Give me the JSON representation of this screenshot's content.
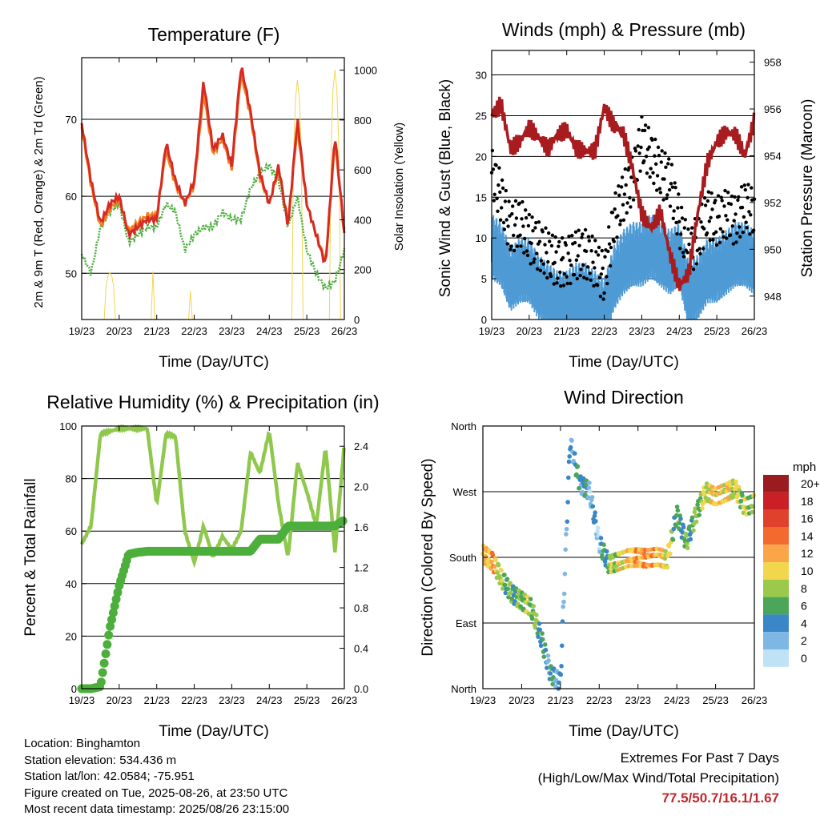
{
  "xticks": [
    "19/23",
    "20/23",
    "21/23",
    "22/23",
    "23/23",
    "24/23",
    "25/23",
    "26/23"
  ],
  "colors": {
    "red": "#d62a22",
    "orange": "#f07e24",
    "green": "#4caf3c",
    "yellow": "#f2d64e",
    "blue": "#4d9ad5",
    "black": "#000000",
    "maroon": "#a81c1f",
    "rh": "#8fc84c",
    "precip": "#4caf3c"
  },
  "panels": {
    "temperature": {
      "title": "Temperature (F)",
      "xlabel": "Time (Day/UTC)",
      "ylabel": "2m & 9m T (Red, Orange) & 2m Td (Green)",
      "ylabel2": "Solar Insolation (Yellow)",
      "yticks": [
        "50",
        "60",
        "70"
      ],
      "yticks2": [
        "0",
        "200",
        "400",
        "600",
        "800",
        "1000"
      ]
    },
    "winds": {
      "title": "Winds (mph) & Pressure (mb)",
      "xlabel": "Time (Day/UTC)",
      "ylabel": "Sonic Wind & Gust (Blue, Black)",
      "ylabel2": "Station Pressure (Maroon)",
      "yticks": [
        "0",
        "5",
        "10",
        "15",
        "20",
        "25",
        "30"
      ],
      "yticks2": [
        "948",
        "950",
        "952",
        "954",
        "956",
        "958"
      ]
    },
    "humidity": {
      "title": "Relative Humidity (%) & Precipitation (in)",
      "xlabel": "Time (Day/UTC)",
      "ylabel": "Percent & Total Rainfall",
      "yticks": [
        "0",
        "20",
        "40",
        "60",
        "80",
        "100"
      ],
      "yticks2": [
        "0.0",
        "0.4",
        "0.8",
        "1.2",
        "1.6",
        "2.0",
        "2.4"
      ]
    },
    "direction": {
      "title": "Wind Direction",
      "xlabel": "Time (Day/UTC)",
      "ylabel": "Direction (Colored By Speed)",
      "yticks": [
        "North",
        "East",
        "South",
        "West",
        "North"
      ],
      "legend_title": "mph",
      "legend_labels": [
        "20+",
        "18",
        "16",
        "14",
        "12",
        "10",
        "8",
        "6",
        "4",
        "2",
        "0"
      ],
      "legend_colors": [
        "#9b1c1f",
        "#c91f25",
        "#e0412d",
        "#f26a2e",
        "#f9a548",
        "#f2d64e",
        "#9bc94c",
        "#4ba65a",
        "#3a86c6",
        "#7fb7e4",
        "#bfe2f6"
      ]
    }
  },
  "info": {
    "location": "Location: Binghamton",
    "elevation": "Station elevation: 534.436 m",
    "latlon": "Station lat/lon: 42.0584; -75.951",
    "created": "Figure created on Tue, 2025-08-26, at 23:50 UTC",
    "recent": "Most recent data timestamp: 2025/08/26 23:15:00"
  },
  "extremes": {
    "title": "Extremes For Past 7 Days",
    "subtitle": "(High/Low/Max Wind/Total Precipitation)",
    "values": "77.5/50.7/16.1/1.67"
  },
  "chart_data": [
    {
      "type": "line",
      "title": "Temperature (F)",
      "xlabel": "Time (Day/UTC)",
      "ylabel": "2m & 9m T (Red, Orange) & 2m Td (Green)",
      "y2label": "Solar Insolation (Yellow)",
      "x": [
        0,
        0.25,
        0.5,
        0.75,
        1,
        1.25,
        1.5,
        1.75,
        2,
        2.25,
        2.5,
        2.75,
        3,
        3.25,
        3.5,
        3.75,
        4,
        4.25,
        4.5,
        4.75,
        5,
        5.25,
        5.5,
        5.75,
        6,
        6.25,
        6.5,
        6.75,
        7
      ],
      "ylim": [
        44,
        78
      ],
      "y2lim": [
        0,
        1050
      ],
      "series": [
        {
          "name": "2m T",
          "values": [
            69.5,
            62,
            56.5,
            59,
            60,
            55,
            56,
            57,
            57,
            67,
            62,
            59,
            62,
            75,
            66,
            68,
            64,
            77,
            71,
            63,
            59,
            64,
            56,
            70,
            59,
            55,
            51,
            68,
            55
          ]
        },
        {
          "name": "9m T",
          "values": [
            69,
            61.5,
            56,
            58.5,
            59.5,
            55.5,
            56.5,
            57.5,
            57.5,
            66,
            61.5,
            59,
            61.5,
            73.5,
            65.5,
            67.5,
            63.5,
            76,
            70.5,
            62.5,
            59,
            63.5,
            56.5,
            69,
            59,
            55,
            51.5,
            67,
            55.5
          ]
        },
        {
          "name": "2m Td",
          "values": [
            52.5,
            50,
            56,
            58,
            59,
            54,
            55,
            56,
            56,
            59,
            58,
            53,
            55,
            56,
            56,
            58,
            57,
            57,
            61,
            63,
            64,
            62,
            56,
            60,
            53,
            50,
            48,
            49,
            53
          ]
        },
        {
          "name": "Solar Insolation",
          "values": [
            0,
            0,
            0,
            190,
            0,
            0,
            0,
            0,
            500,
            0,
            0,
            0,
            300,
            820,
            0,
            0,
            0,
            870,
            0,
            0,
            0,
            860,
            0,
            960,
            0,
            0,
            0,
            1000,
            0
          ]
        }
      ]
    },
    {
      "type": "line",
      "title": "Winds (mph) & Pressure (mb)",
      "xlabel": "Time (Day/UTC)",
      "ylabel": "Sonic Wind & Gust (Blue, Black)",
      "y2label": "Station Pressure (Maroon)",
      "x": [
        0,
        0.25,
        0.5,
        0.75,
        1,
        1.25,
        1.5,
        1.75,
        2,
        2.25,
        2.5,
        2.75,
        3,
        3.25,
        3.5,
        3.75,
        4,
        4.25,
        4.5,
        4.75,
        5,
        5.25,
        5.5,
        5.75,
        6,
        6.25,
        6.5,
        6.75,
        7
      ],
      "ylim": [
        0,
        33
      ],
      "y2lim": [
        947,
        958.5
      ],
      "series": [
        {
          "name": "Sonic Wind",
          "values": [
            10,
            9,
            6,
            7,
            7,
            5,
            4,
            3,
            3,
            4,
            4,
            3,
            2,
            6,
            8,
            9,
            9,
            10,
            9,
            8,
            9,
            4,
            5,
            7,
            7,
            8,
            9,
            9,
            8
          ]
        },
        {
          "name": "Gust",
          "values": [
            18,
            15,
            11,
            12,
            10,
            9,
            8,
            7,
            7,
            8,
            8,
            7,
            5,
            12,
            15,
            17,
            22,
            20,
            18,
            17,
            12,
            8,
            10,
            13,
            12,
            13,
            12,
            14,
            13
          ]
        },
        {
          "name": "Station Pressure",
          "values": [
            955.7,
            956.2,
            954.3,
            954.6,
            955.2,
            954.8,
            954.3,
            954.9,
            955.1,
            954.3,
            954.2,
            954.2,
            956.1,
            955.3,
            955.0,
            953.5,
            951.5,
            950.9,
            951.6,
            949.8,
            948.4,
            949.0,
            951.6,
            953.7,
            954.6,
            955.0,
            954.9,
            954.0,
            955.5
          ]
        }
      ]
    },
    {
      "type": "line",
      "title": "Relative Humidity (%) & Precipitation (in)",
      "xlabel": "Time (Day/UTC)",
      "ylabel": "Percent & Total Rainfall",
      "x": [
        0,
        0.25,
        0.5,
        0.75,
        1,
        1.25,
        1.5,
        1.75,
        2,
        2.25,
        2.5,
        2.75,
        3,
        3.25,
        3.5,
        3.75,
        4,
        4.25,
        4.5,
        4.75,
        5,
        5.25,
        5.5,
        5.75,
        6,
        6.25,
        6.5,
        6.75,
        7
      ],
      "ylim": [
        0,
        100
      ],
      "y2lim": [
        0,
        2.6
      ],
      "series": [
        {
          "name": "Relative Humidity",
          "values": [
            55,
            62,
            97,
            98,
            99,
            99,
            99,
            99,
            70,
            97,
            96,
            60,
            48,
            62,
            50,
            58,
            53,
            60,
            90,
            82,
            98,
            70,
            50,
            86,
            75,
            62,
            92,
            52,
            93
          ]
        },
        {
          "name": "Total Precipitation",
          "values": [
            0,
            0,
            0.02,
            0.6,
            1.02,
            1.33,
            1.35,
            1.36,
            1.36,
            1.36,
            1.36,
            1.36,
            1.36,
            1.36,
            1.36,
            1.36,
            1.36,
            1.36,
            1.36,
            1.48,
            1.48,
            1.48,
            1.61,
            1.61,
            1.61,
            1.61,
            1.61,
            1.61,
            1.67
          ]
        }
      ]
    },
    {
      "type": "scatter",
      "title": "Wind Direction",
      "xlabel": "Time (Day/UTC)",
      "ylabel": "Direction (Colored By Speed)",
      "x": [
        0,
        0.25,
        0.5,
        0.75,
        1,
        1.25,
        1.5,
        1.75,
        2,
        2.25,
        2.5,
        2.75,
        3,
        3.25,
        3.5,
        3.75,
        4,
        4.25,
        4.5,
        4.75,
        5,
        5.25,
        5.5,
        5.75,
        6,
        6.25,
        6.5,
        6.75,
        7
      ],
      "ylim": [
        0,
        360
      ],
      "series": [
        {
          "name": "Direction (deg)",
          "values": [
            185,
            175,
            150,
            130,
            120,
            110,
            70,
            20,
            10,
            340,
            280,
            270,
            200,
            170,
            175,
            180,
            180,
            178,
            180,
            176,
            240,
            200,
            240,
            270,
            262,
            268,
            275,
            250,
            255
          ]
        },
        {
          "name": "Speed (mph)",
          "values": [
            10,
            12,
            7,
            6,
            7,
            8,
            5,
            4,
            3,
            3,
            5,
            3,
            2,
            7,
            9,
            11,
            12,
            13,
            11,
            10,
            5,
            6,
            7,
            9,
            11,
            10,
            9,
            8,
            7
          ]
        }
      ]
    }
  ]
}
